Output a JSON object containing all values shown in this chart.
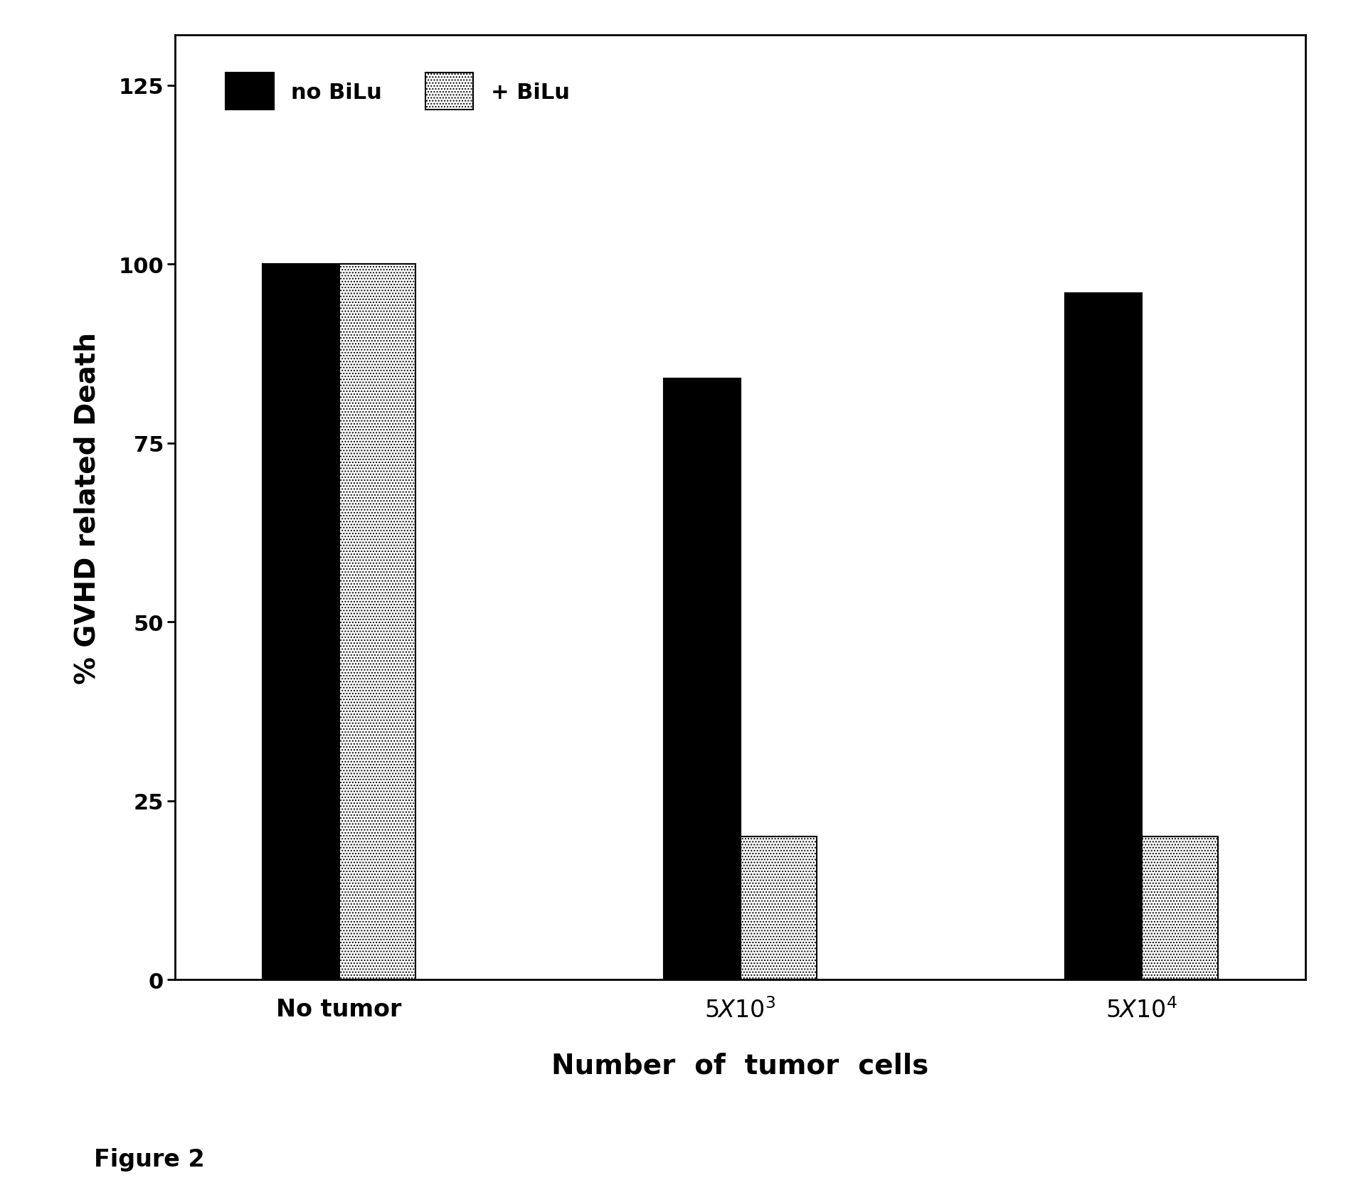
{
  "categories": [
    "No tumor",
    "5X10$^3$",
    "5X10$^4$"
  ],
  "no_bilu_values": [
    100,
    84,
    96
  ],
  "plus_bilu_values": [
    100,
    20,
    20
  ],
  "bar_width": 0.42,
  "group_centers": [
    1.0,
    3.2,
    5.4
  ],
  "ylim": [
    0,
    132
  ],
  "yticks": [
    0,
    25,
    50,
    75,
    100,
    125
  ],
  "ylabel": "% GVHD related Death",
  "xlabel": "Number  of  tumor  cells",
  "figure2_label": "Figure 2",
  "no_bilu_color": "#000000",
  "plus_bilu_hatch": "....",
  "legend_no_bilu": "no BiLu",
  "legend_plus_bilu": "+ BiLu",
  "background_color": "#ffffff",
  "tick_fontsize": 22,
  "label_fontsize": 28,
  "legend_fontsize": 22,
  "figure2_fontsize": 24,
  "xlim": [
    0.1,
    6.3
  ]
}
